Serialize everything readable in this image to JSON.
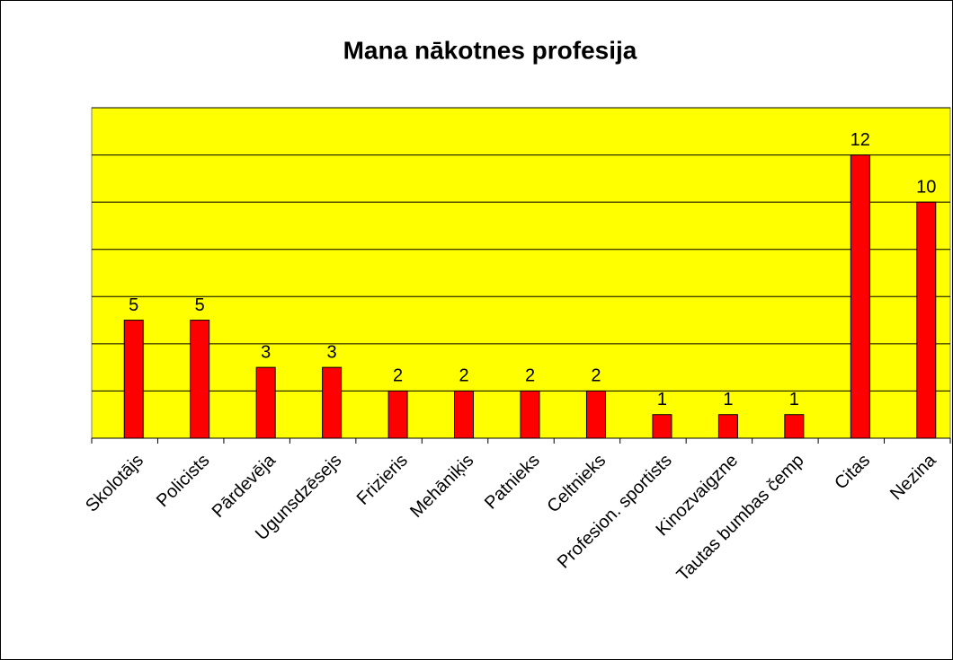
{
  "chart_data": {
    "type": "bar",
    "title": "Mana nākotnes profesija",
    "categories": [
      "Skolotājs",
      "Policists",
      "Pārdevēja",
      "Ugunsdzēsejs",
      "Frizieris",
      "Mehāniķis",
      "Patnieks",
      "Celtnieks",
      "Profesion. sportists",
      "Kinozvaigzne",
      "Tautas bumbas čemp",
      "Citas",
      "Nezina"
    ],
    "values": [
      5,
      5,
      3,
      3,
      2,
      2,
      2,
      2,
      1,
      1,
      1,
      12,
      10
    ],
    "color": "#ff0000",
    "plot_background": "#ffff00",
    "ylim": [
      0,
      14
    ],
    "yticks": [
      0,
      2,
      4,
      6,
      8,
      10,
      12,
      14
    ],
    "grid": true
  }
}
